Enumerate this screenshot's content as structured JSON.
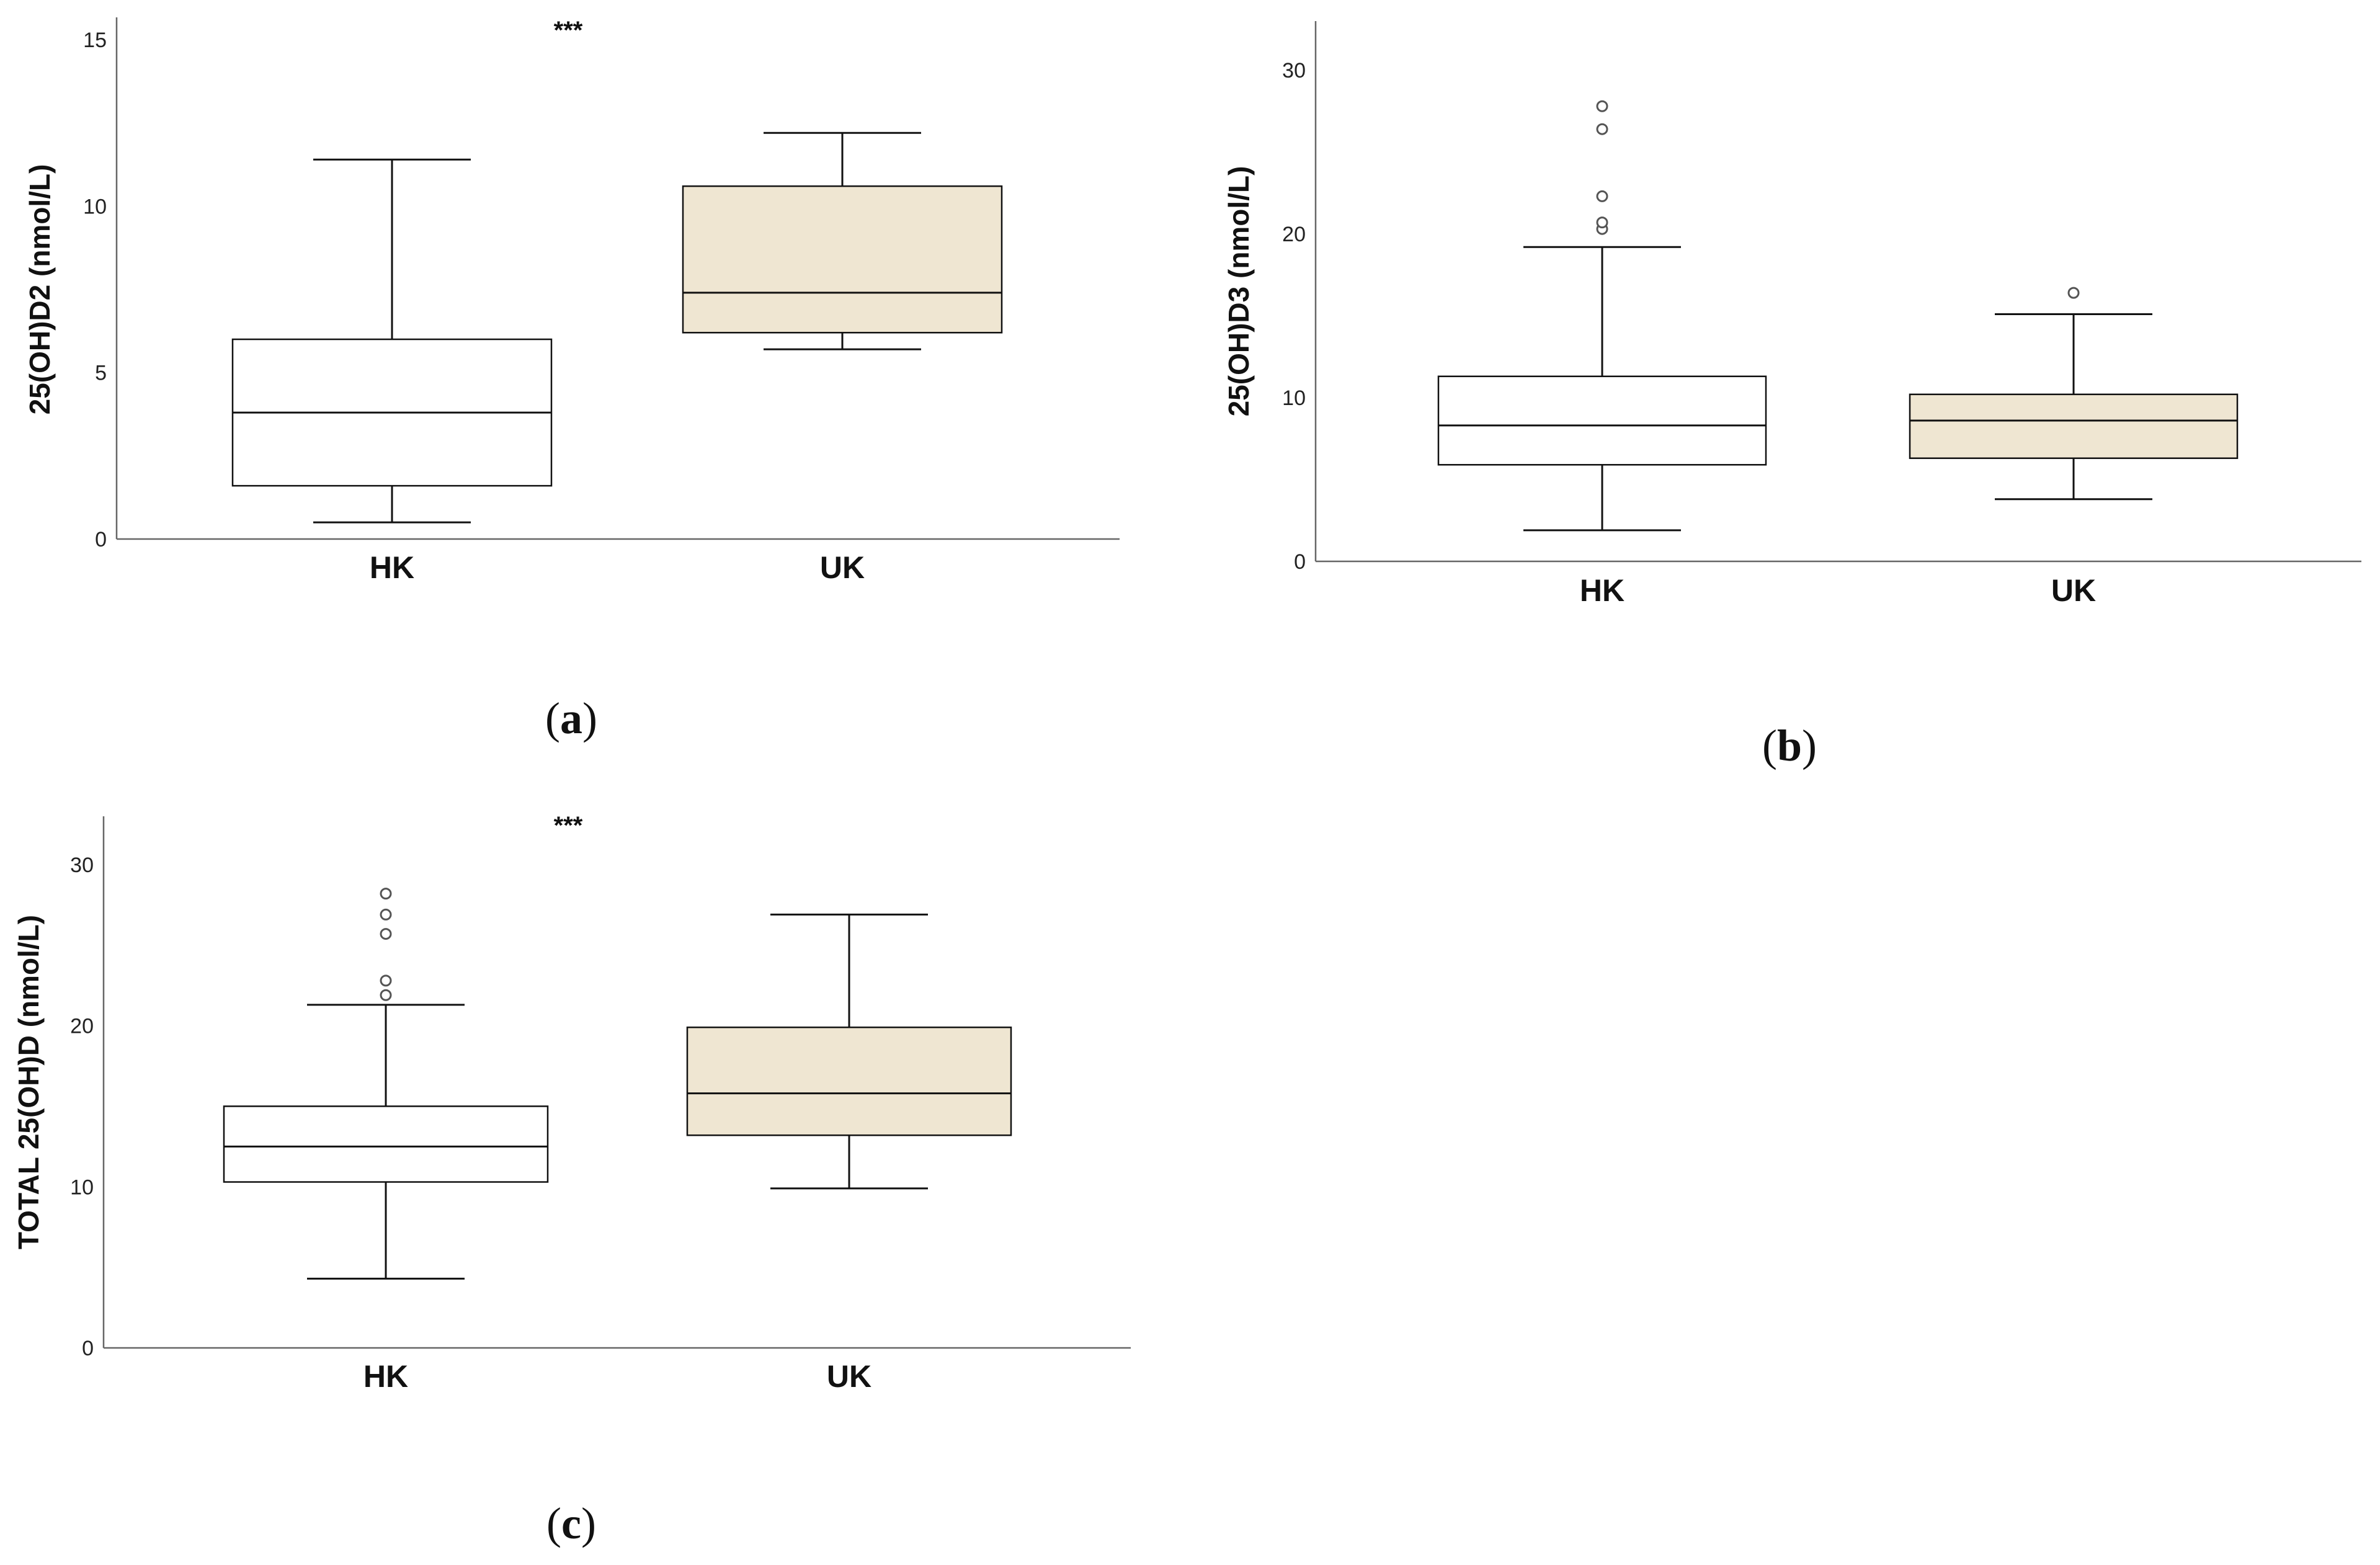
{
  "chart_data": [
    {
      "type": "box",
      "panel": "a",
      "ylabel": "25(OH)D2 (nmol/L)",
      "ylim": [
        0,
        15
      ],
      "yticks": [
        0,
        5,
        10,
        15
      ],
      "categories": [
        "HK",
        "UK"
      ],
      "significance": "***",
      "fill_colors": [
        "#ffffff",
        "#efe6d2"
      ],
      "boxes": [
        {
          "category": "HK",
          "min": 0.5,
          "q1": 1.6,
          "median": 3.8,
          "q3": 6.0,
          "max": 11.4,
          "outliers": []
        },
        {
          "category": "UK",
          "min": 5.7,
          "q1": 6.2,
          "median": 7.4,
          "q3": 10.6,
          "max": 12.2,
          "outliers": []
        }
      ]
    },
    {
      "type": "box",
      "panel": "b",
      "ylabel": "25(OH)D3 (nmol/L)",
      "ylim": [
        0,
        33
      ],
      "yticks": [
        0,
        10,
        20,
        30
      ],
      "categories": [
        "HK",
        "UK"
      ],
      "significance": "",
      "fill_colors": [
        "#ffffff",
        "#efe6d2"
      ],
      "boxes": [
        {
          "category": "HK",
          "min": 1.9,
          "q1": 5.9,
          "median": 8.3,
          "q3": 11.3,
          "max": 19.2,
          "outliers": [
            20.3,
            20.7,
            22.3,
            26.4,
            27.8
          ]
        },
        {
          "category": "UK",
          "min": 3.8,
          "q1": 6.3,
          "median": 8.6,
          "q3": 10.2,
          "max": 15.1,
          "outliers": [
            16.4
          ]
        }
      ]
    },
    {
      "type": "box",
      "panel": "c",
      "ylabel": "TOTAL 25(OH)D (nmol/L)",
      "ylim": [
        0,
        33
      ],
      "yticks": [
        0,
        10,
        20,
        30
      ],
      "categories": [
        "HK",
        "UK"
      ],
      "significance": "***",
      "fill_colors": [
        "#ffffff",
        "#efe6d2"
      ],
      "boxes": [
        {
          "category": "HK",
          "min": 4.3,
          "q1": 10.3,
          "median": 12.5,
          "q3": 15.0,
          "max": 21.3,
          "outliers": [
            21.9,
            22.8,
            25.7,
            26.9,
            28.2
          ]
        },
        {
          "category": "UK",
          "min": 9.9,
          "q1": 13.2,
          "median": 15.8,
          "q3": 19.9,
          "max": 26.9,
          "outliers": []
        }
      ]
    }
  ],
  "panel_labels": {
    "a": {
      "open": "(",
      "letter": "a",
      "close": ")"
    },
    "b": {
      "open": "(",
      "letter": "b",
      "close": ")"
    },
    "c": {
      "open": "(",
      "letter": "c",
      "close": ")"
    }
  }
}
